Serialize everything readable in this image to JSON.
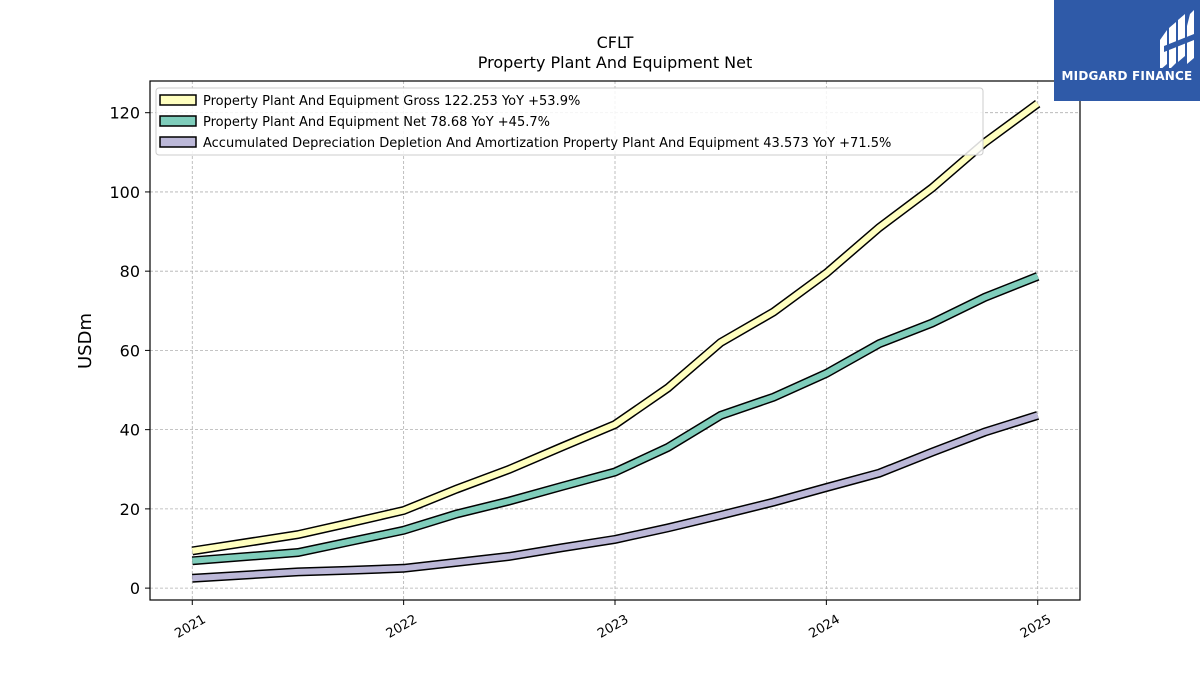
{
  "logo": {
    "text": "MIDGARD FINANCE",
    "background": "#2f5aa8"
  },
  "chart_data": {
    "type": "line",
    "title": "CFLT",
    "subtitle": "Property Plant And Equipment Net",
    "ylabel": "USDm",
    "xlabel": "",
    "xlim": [
      2020.8,
      2025.2
    ],
    "ylim": [
      -3,
      128
    ],
    "yticks": [
      0,
      20,
      40,
      60,
      80,
      100,
      120
    ],
    "xticks": [
      "2021",
      "2022",
      "2023",
      "2024",
      "2025"
    ],
    "grid": true,
    "legend_position": "top-left",
    "x": [
      2021.0,
      2021.5,
      2021.75,
      2022.0,
      2022.25,
      2022.5,
      2022.75,
      2023.0,
      2023.25,
      2023.5,
      2023.75,
      2024.0,
      2024.25,
      2024.5,
      2024.75,
      2025.0
    ],
    "series": [
      {
        "name": "Property Plant And Equipment Gross",
        "legend": "Property Plant And Equipment Gross  122.253 YoY +53.9%",
        "color": "#ffffbf",
        "values": [
          9.4,
          13.5,
          16.5,
          19.6,
          25.0,
          30.0,
          35.7,
          41.3,
          50.5,
          62.0,
          69.7,
          79.5,
          91.0,
          101.0,
          112.5,
          122.3
        ]
      },
      {
        "name": "Property Plant And Equipment Net",
        "legend": "Property Plant And Equipment Net  78.68 YoY +45.7%",
        "color": "#7fcdbb",
        "values": [
          6.9,
          9.0,
          11.8,
          14.6,
          18.7,
          22.0,
          25.7,
          29.3,
          35.5,
          43.6,
          48.2,
          54.2,
          61.7,
          66.9,
          73.4,
          78.7
        ]
      },
      {
        "name": "Accumulated Depreciation Depletion And Amortization Property Plant And Equipment",
        "legend": "Accumulated Depreciation Depletion And Amortization Property Plant And Equipment  43.573 YoY +71.5%",
        "color": "#bcb8d8",
        "values": [
          2.5,
          4.1,
          4.5,
          5.0,
          6.5,
          8.0,
          10.2,
          12.3,
          15.2,
          18.4,
          21.7,
          25.4,
          29.0,
          34.3,
          39.4,
          43.6
        ]
      }
    ]
  }
}
